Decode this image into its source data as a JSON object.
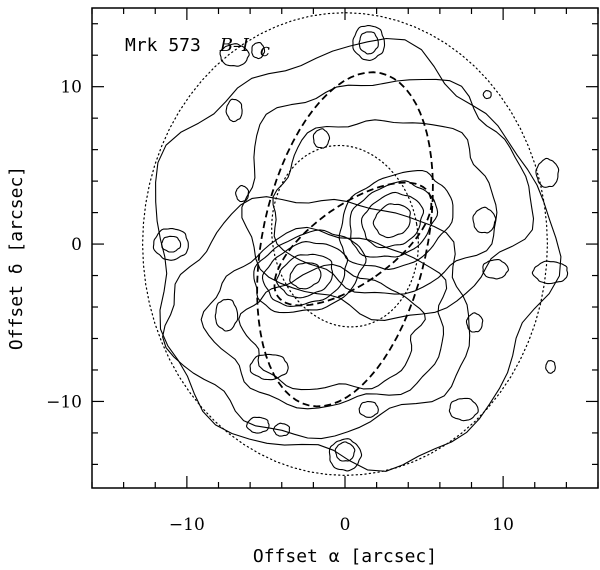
{
  "chart_data": {
    "type": "contour",
    "title_prefix": "Mrk 573",
    "title_band": "B–I",
    "title_band_sub": "c",
    "xlabel": "Offset α [arcsec]",
    "ylabel": "Offset δ [arcsec]",
    "xlim": [
      -16,
      16
    ],
    "ylim": [
      -15.5,
      15
    ],
    "xticks": [
      -10,
      0,
      10
    ],
    "xtick_labels": [
      "−10",
      "0",
      "10"
    ],
    "yticks": [
      -10,
      0,
      10
    ],
    "ytick_labels": [
      "−10",
      "0",
      "10"
    ],
    "minor_step": 2,
    "peaks": [
      {
        "name": "nucleus-east-peak",
        "x": 3,
        "y": 1.5
      },
      {
        "name": "nucleus-west-peak",
        "x": -2.5,
        "y": -2
      }
    ],
    "contour_clumps": [
      {
        "cx": 3,
        "cy": 1.5,
        "rx": 1.2,
        "ry": 1.0,
        "rot": 30
      },
      {
        "cx": 3,
        "cy": 1.5,
        "rx": 2.0,
        "ry": 1.6,
        "rot": 30
      },
      {
        "cx": 3,
        "cy": 1.5,
        "rx": 2.9,
        "ry": 2.2,
        "rot": 30
      },
      {
        "cx": 3.2,
        "cy": 1.5,
        "rx": 3.8,
        "ry": 2.8,
        "rot": 30
      },
      {
        "cx": -2.5,
        "cy": -2,
        "rx": 1.0,
        "ry": 0.8,
        "rot": 20
      },
      {
        "cx": -2.5,
        "cy": -2,
        "rx": 1.8,
        "ry": 1.3,
        "rot": 20
      },
      {
        "cx": -2.5,
        "cy": -1.9,
        "rx": 2.7,
        "ry": 1.9,
        "rot": 20
      },
      {
        "cx": -2.3,
        "cy": -1.8,
        "rx": 3.6,
        "ry": 2.4,
        "rot": 20
      },
      {
        "cx": -11,
        "cy": 0,
        "rx": 0.6,
        "ry": 0.5,
        "rot": 0
      },
      {
        "cx": -11,
        "cy": 0,
        "rx": 1.1,
        "ry": 1.0,
        "rot": 0
      },
      {
        "cx": 13,
        "cy": -1.8,
        "rx": 1.1,
        "ry": 0.7,
        "rot": 0
      },
      {
        "cx": 12.8,
        "cy": 4.5,
        "rx": 0.7,
        "ry": 0.9,
        "rot": 0
      },
      {
        "cx": -7,
        "cy": 12,
        "rx": 0.9,
        "ry": 0.7,
        "rot": 0
      },
      {
        "cx": -5.5,
        "cy": 12.3,
        "rx": 0.4,
        "ry": 0.5,
        "rot": 0
      },
      {
        "cx": 1.5,
        "cy": 12.8,
        "rx": 0.6,
        "ry": 0.7,
        "rot": 0
      },
      {
        "cx": 1.5,
        "cy": 12.8,
        "rx": 1.0,
        "ry": 1.1,
        "rot": 0
      },
      {
        "cx": -7,
        "cy": 8.5,
        "rx": 0.5,
        "ry": 0.7,
        "rot": 0
      },
      {
        "cx": -6.5,
        "cy": 3.2,
        "rx": 0.4,
        "ry": 0.5,
        "rot": 0
      },
      {
        "cx": 8.8,
        "cy": 1.5,
        "rx": 0.7,
        "ry": 0.8,
        "rot": 0
      },
      {
        "cx": 9.5,
        "cy": -1.6,
        "rx": 0.8,
        "ry": 0.6,
        "rot": 0
      },
      {
        "cx": -7.5,
        "cy": -4.5,
        "rx": 0.7,
        "ry": 1.0,
        "rot": 0
      },
      {
        "cx": -4.8,
        "cy": -7.8,
        "rx": 1.2,
        "ry": 0.8,
        "rot": 0
      },
      {
        "cx": -5.5,
        "cy": -11.5,
        "rx": 0.7,
        "ry": 0.5,
        "rot": 0
      },
      {
        "cx": -4,
        "cy": -11.8,
        "rx": 0.5,
        "ry": 0.4,
        "rot": 0
      },
      {
        "cx": 0,
        "cy": -13.2,
        "rx": 0.6,
        "ry": 0.6,
        "rot": 0
      },
      {
        "cx": 0,
        "cy": -13.4,
        "rx": 1.0,
        "ry": 1.0,
        "rot": 0
      },
      {
        "cx": 7.5,
        "cy": -10.5,
        "rx": 0.9,
        "ry": 0.7,
        "rot": 0
      },
      {
        "cx": 1.5,
        "cy": -10.5,
        "rx": 0.6,
        "ry": 0.5,
        "rot": 0
      },
      {
        "cx": 13,
        "cy": -7.8,
        "rx": 0.3,
        "ry": 0.4,
        "rot": 0
      },
      {
        "cx": 9,
        "cy": 9.5,
        "rx": 0.25,
        "ry": 0.25,
        "rot": 0
      },
      {
        "cx": 8.2,
        "cy": -5.0,
        "rx": 0.5,
        "ry": 0.6,
        "rot": 0
      },
      {
        "cx": -1.5,
        "cy": 6.7,
        "rx": 0.5,
        "ry": 0.6,
        "rot": 0
      }
    ],
    "contour_bands": [
      {
        "name": "outer-envelope",
        "cx": 0.3,
        "cy": -0.8,
        "rx": 12.5,
        "ry": 13.2,
        "rot": 0,
        "amp": 0.09,
        "seed": 1
      },
      {
        "name": "northern-arm-outer",
        "cx": 2.5,
        "cy": 3.0,
        "rx": 9.0,
        "ry": 7.5,
        "rot": 0,
        "amp": 0.1,
        "seed": 2
      },
      {
        "name": "northern-arm-inner",
        "cx": 2.5,
        "cy": 2.5,
        "rx": 7.0,
        "ry": 5.5,
        "rot": 0,
        "amp": 0.1,
        "seed": 3
      },
      {
        "name": "southern-arm-outer",
        "cx": -1.5,
        "cy": -4.5,
        "rx": 9.5,
        "ry": 7.5,
        "rot": 0,
        "amp": 0.1,
        "seed": 4
      },
      {
        "name": "southern-arm-inner",
        "cx": -1.0,
        "cy": -4.8,
        "rx": 7.5,
        "ry": 5.5,
        "rot": 0,
        "amp": 0.1,
        "seed": 5
      },
      {
        "name": "southern-arm-core",
        "cx": -0.8,
        "cy": -5.5,
        "rx": 5.5,
        "ry": 3.8,
        "rot": 0,
        "amp": 0.12,
        "seed": 6
      }
    ],
    "dotted_ellipses": [
      {
        "name": "outer-dotted-ellipse",
        "cx": 0,
        "cy": 0,
        "rx": 12.8,
        "ry": 14.7,
        "rot": 0
      },
      {
        "name": "inner-dotted-ellipse",
        "cx": 0,
        "cy": 0.5,
        "rx": 4.6,
        "ry": 5.8,
        "rot": 10
      }
    ],
    "dashed_ellipses": [
      {
        "name": "outer-dashed-ellipse",
        "cx": 0,
        "cy": 0.3,
        "rx": 5.2,
        "ry": 10.8,
        "rot": -12
      },
      {
        "name": "inner-dashed-ellipse",
        "cx": 0.5,
        "cy": 0,
        "rx": 2.5,
        "ry": 5.8,
        "rot": -55
      }
    ]
  }
}
